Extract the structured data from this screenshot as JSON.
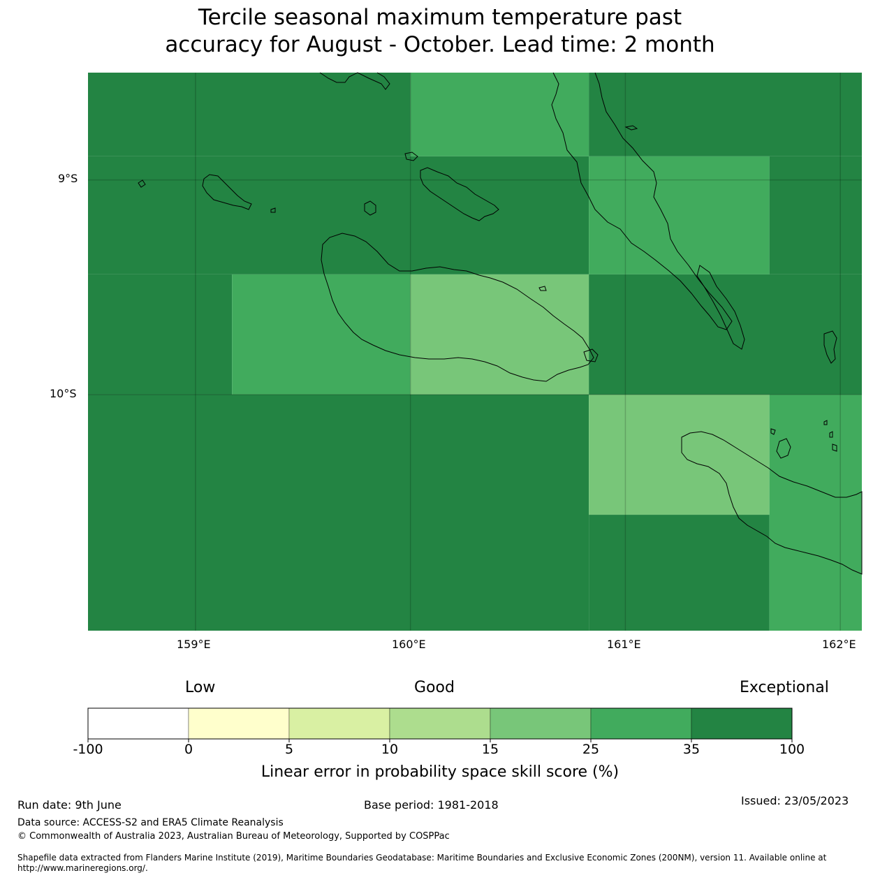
{
  "title_line1": "Tercile seasonal maximum temperature past",
  "title_line2": "accuracy for August - October. Lead time: 2 month",
  "map": {
    "lat_labels": [
      "9°S",
      "10°S"
    ],
    "lon_labels": [
      "159°E",
      "160°E",
      "161°E",
      "162°E"
    ],
    "lon_range": [
      158.5,
      162.1
    ],
    "lat_range": [
      -8.5,
      -11.1
    ],
    "cells": [
      {
        "lon": [
          158.5,
          160.0
        ],
        "lat": [
          -8.5,
          -8.89
        ],
        "cls": 6
      },
      {
        "lon": [
          160.0,
          160.83
        ],
        "lat": [
          -8.5,
          -8.89
        ],
        "cls": 5
      },
      {
        "lon": [
          160.83,
          162.1
        ],
        "lat": [
          -8.5,
          -8.89
        ],
        "cls": 6
      },
      {
        "lon": [
          158.5,
          160.83
        ],
        "lat": [
          -8.89,
          -9.44
        ],
        "cls": 6
      },
      {
        "lon": [
          160.83,
          161.67
        ],
        "lat": [
          -8.89,
          -9.44
        ],
        "cls": 5
      },
      {
        "lon": [
          161.67,
          162.1
        ],
        "lat": [
          -8.89,
          -9.44
        ],
        "cls": 6
      },
      {
        "lon": [
          158.5,
          159.17
        ],
        "lat": [
          -9.44,
          -10.0
        ],
        "cls": 6
      },
      {
        "lon": [
          159.17,
          160.0
        ],
        "lat": [
          -9.44,
          -10.0
        ],
        "cls": 5
      },
      {
        "lon": [
          160.0,
          160.83
        ],
        "lat": [
          -9.44,
          -10.0
        ],
        "cls": 4
      },
      {
        "lon": [
          160.83,
          162.1
        ],
        "lat": [
          -9.44,
          -10.0
        ],
        "cls": 6
      },
      {
        "lon": [
          158.5,
          160.83
        ],
        "lat": [
          -10.0,
          -11.1
        ],
        "cls": 6
      },
      {
        "lon": [
          160.83,
          161.67
        ],
        "lat": [
          -10.0,
          -10.56
        ],
        "cls": 4
      },
      {
        "lon": [
          161.67,
          162.1
        ],
        "lat": [
          -10.0,
          -11.1
        ],
        "cls": 5
      },
      {
        "lon": [
          160.83,
          161.67
        ],
        "lat": [
          -10.56,
          -11.1
        ],
        "cls": 6
      }
    ]
  },
  "colorbar": {
    "top_labels": {
      "low": "Low",
      "good": "Good",
      "exceptional": "Exceptional"
    },
    "colors": [
      "#ffffff",
      "#ffffcc",
      "#d9f0a3",
      "#addd8e",
      "#78c679",
      "#41ab5d",
      "#238443"
    ],
    "ticks": [
      "-100",
      "0",
      "5",
      "10",
      "15",
      "25",
      "35",
      "100"
    ],
    "xlabel": "Linear error in probability space skill score (%)"
  },
  "footer": {
    "run_date": "Run date: 9th June",
    "base_period": "Base period: 1981-2018",
    "issued": "Issued: 23/05/2023",
    "data_source": "Data source: ACCESS-S2 and ERA5 Climate Reanalysis",
    "copyright": "© Commonwealth of Australia 2023, Australian Bureau of Meteorology, Supported by COSPPac",
    "shapefile": "Shapefile data extracted from Flanders Marine Institute (2019), Maritime Boundaries Geodatabase: Maritime Boundaries and Exclusive Economic Zones (200NM), version 11. Available online at http://www.marineregions.org/."
  }
}
